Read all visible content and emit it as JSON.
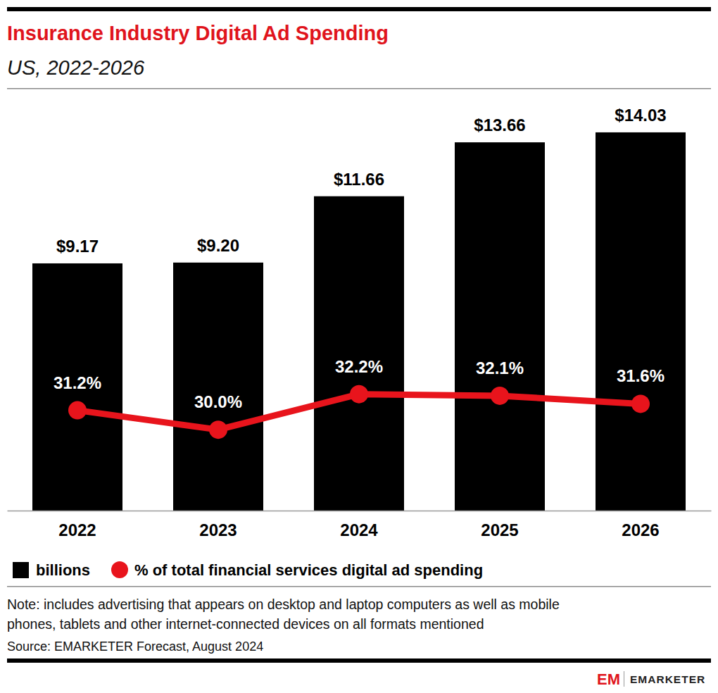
{
  "chart_data": {
    "type": "bar",
    "title": "Insurance Industry Digital Ad Spending",
    "subtitle": "US, 2022-2026",
    "categories": [
      "2022",
      "2023",
      "2024",
      "2025",
      "2026"
    ],
    "series": [
      {
        "name": "billions",
        "type": "bar",
        "color": "#000000",
        "axis": "y",
        "values": [
          9.17,
          9.2,
          11.66,
          13.66,
          14.03
        ],
        "value_labels": [
          "$9.17",
          "$9.20",
          "$11.66",
          "$13.66",
          "$14.03"
        ]
      },
      {
        "name": "% of total financial services digital ad spending",
        "type": "line",
        "color": "#e8141c",
        "axis": "y2",
        "marker": "circle",
        "line_style": "solid",
        "values": [
          31.2,
          30.0,
          32.2,
          32.1,
          31.6
        ],
        "value_labels": [
          "31.2%",
          "30.0%",
          "32.2%",
          "32.1%",
          "31.6%"
        ]
      }
    ],
    "ylim": [
      0,
      15
    ],
    "yticks": [
      0,
      15
    ],
    "y2lim": [
      25,
      50
    ],
    "y2ticks": [
      25,
      50
    ],
    "tick_labels": "x",
    "grid": false,
    "data_labels": true,
    "legend": "bottom",
    "note": [
      "Note: includes advertising that appears on desktop and laptop computers as well as mobile",
      "phones, tablets and other internet-connected devices on all formats mentioned"
    ],
    "source": "Source: EMARKETER Forecast, August 2024",
    "brand_mark": "EM",
    "brand": "EMARKETER"
  }
}
